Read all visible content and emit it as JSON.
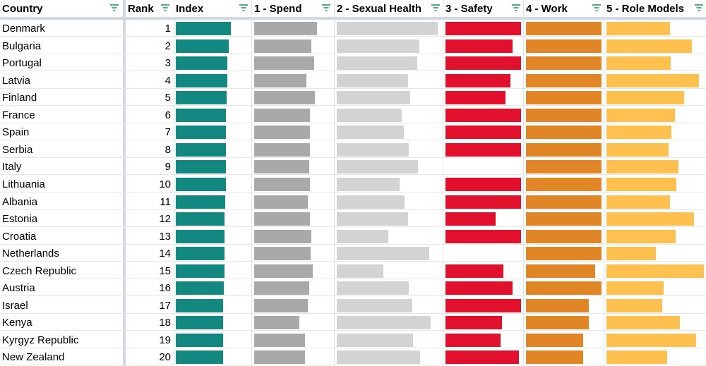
{
  "columns": {
    "country": "Country",
    "rank": "Rank",
    "index": "Index",
    "spend": "1 - Spend",
    "sexual_health": "2 - Sexual Health",
    "safety": "3 - Safety",
    "work": "4 - Work",
    "role_models": "5 - Role Models"
  },
  "colors": {
    "index": "#138880",
    "spend": "#a9a9a9",
    "sexual_health": "#d3d3d3",
    "safety": "#e1102d",
    "work": "#e08626",
    "role_models": "#fec150"
  },
  "rows": [
    {
      "country": "Denmark",
      "rank": "1",
      "index": 0.82,
      "spend": 0.81,
      "sexual_health": 0.98,
      "safety": 1.0,
      "work": 1.0,
      "role_models": 0.65
    },
    {
      "country": "Bulgaria",
      "rank": "2",
      "index": 0.79,
      "spend": 0.74,
      "sexual_health": 0.8,
      "safety": 0.89,
      "work": 1.0,
      "role_models": 0.88
    },
    {
      "country": "Portugal",
      "rank": "3",
      "index": 0.77,
      "spend": 0.77,
      "sexual_health": 0.78,
      "safety": 1.0,
      "work": 1.0,
      "role_models": 0.66
    },
    {
      "country": "Latvia",
      "rank": "4",
      "index": 0.77,
      "spend": 0.67,
      "sexual_health": 0.69,
      "safety": 0.86,
      "work": 1.0,
      "role_models": 0.95
    },
    {
      "country": "Finland",
      "rank": "5",
      "index": 0.76,
      "spend": 0.78,
      "sexual_health": 0.71,
      "safety": 0.79,
      "work": 1.0,
      "role_models": 0.8
    },
    {
      "country": "France",
      "rank": "6",
      "index": 0.75,
      "spend": 0.72,
      "sexual_health": 0.63,
      "safety": 1.0,
      "work": 1.0,
      "role_models": 0.7
    },
    {
      "country": "Spain",
      "rank": "7",
      "index": 0.75,
      "spend": 0.72,
      "sexual_health": 0.65,
      "safety": 1.0,
      "work": 1.0,
      "role_models": 0.67
    },
    {
      "country": "Serbia",
      "rank": "8",
      "index": 0.75,
      "spend": 0.72,
      "sexual_health": 0.7,
      "safety": 1.0,
      "work": 1.0,
      "role_models": 0.64
    },
    {
      "country": "Italy",
      "rank": "9",
      "index": 0.75,
      "spend": 0.71,
      "sexual_health": 0.79,
      "safety": 0.0,
      "work": 1.0,
      "role_models": 0.74
    },
    {
      "country": "Lithuania",
      "rank": "10",
      "index": 0.75,
      "spend": 0.72,
      "sexual_health": 0.61,
      "safety": 1.0,
      "work": 1.0,
      "role_models": 0.72
    },
    {
      "country": "Albania",
      "rank": "11",
      "index": 0.74,
      "spend": 0.69,
      "sexual_health": 0.66,
      "safety": 1.0,
      "work": 1.0,
      "role_models": 0.65
    },
    {
      "country": "Estonia",
      "rank": "12",
      "index": 0.73,
      "spend": 0.72,
      "sexual_health": 0.69,
      "safety": 0.66,
      "work": 1.0,
      "role_models": 0.9
    },
    {
      "country": "Croatia",
      "rank": "13",
      "index": 0.73,
      "spend": 0.74,
      "sexual_health": 0.5,
      "safety": 1.0,
      "work": 1.0,
      "role_models": 0.71
    },
    {
      "country": "Netherlands",
      "rank": "14",
      "index": 0.73,
      "spend": 0.73,
      "sexual_health": 0.9,
      "safety": 0.0,
      "work": 1.0,
      "role_models": 0.51
    },
    {
      "country": "Czech Republic",
      "rank": "15",
      "index": 0.73,
      "spend": 0.75,
      "sexual_health": 0.45,
      "safety": 0.77,
      "work": 0.92,
      "role_models": 1.0
    },
    {
      "country": "Austria",
      "rank": "16",
      "index": 0.72,
      "spend": 0.71,
      "sexual_health": 0.7,
      "safety": 0.89,
      "work": 1.0,
      "role_models": 0.59
    },
    {
      "country": "Israel",
      "rank": "17",
      "index": 0.71,
      "spend": 0.69,
      "sexual_health": 0.73,
      "safety": 1.0,
      "work": 0.83,
      "role_models": 0.57
    },
    {
      "country": "Kenya",
      "rank": "18",
      "index": 0.71,
      "spend": 0.58,
      "sexual_health": 0.91,
      "safety": 0.75,
      "work": 0.83,
      "role_models": 0.75
    },
    {
      "country": "Kyrgyz Republic",
      "rank": "19",
      "index": 0.71,
      "spend": 0.65,
      "sexual_health": 0.74,
      "safety": 0.73,
      "work": 0.76,
      "role_models": 0.92
    },
    {
      "country": "New Zealand",
      "rank": "20",
      "index": 0.7,
      "spend": 0.65,
      "sexual_health": 0.81,
      "safety": 0.97,
      "work": 0.76,
      "role_models": 0.62
    }
  ]
}
